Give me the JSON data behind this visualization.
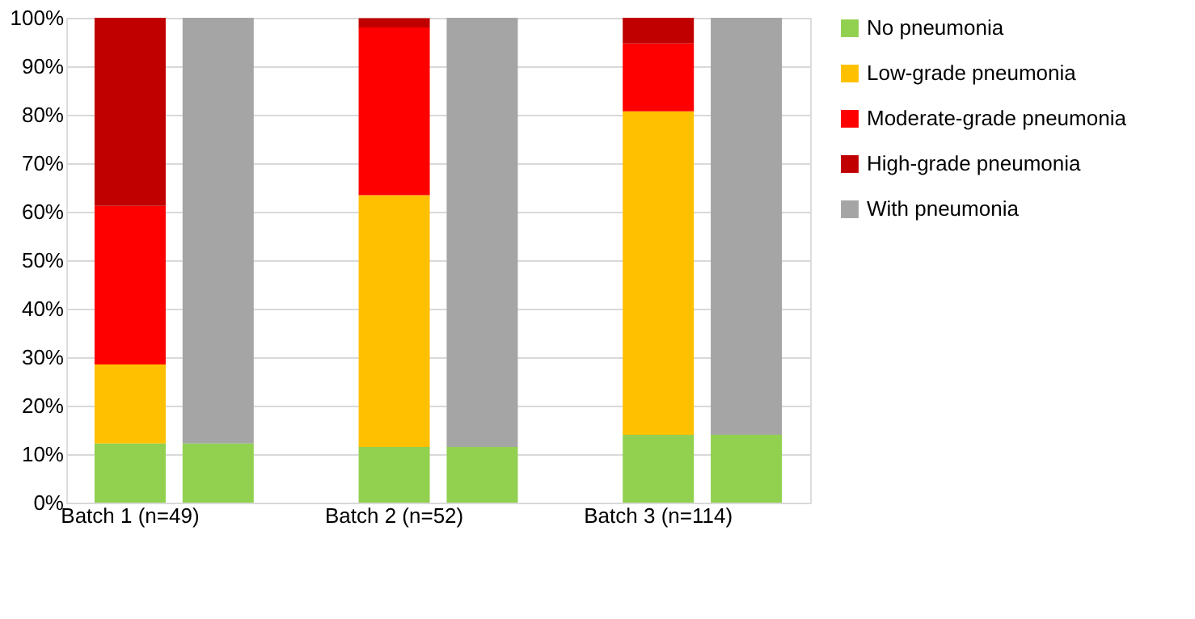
{
  "chart_data": {
    "type": "bar",
    "stacked": true,
    "categories": [
      "Batch 1 (n=49)",
      null,
      null,
      "Batch 2 (n=52)",
      null,
      null,
      "Batch 3 (n=114)",
      null
    ],
    "series": [
      {
        "name": "No pneumonia",
        "color": "#92d050",
        "values": [
          12.2,
          12.2,
          null,
          11.5,
          11.5,
          null,
          14.0,
          14.0
        ]
      },
      {
        "name": "Low-grade pneumonia",
        "color": "#ffc000",
        "values": [
          16.3,
          null,
          null,
          51.9,
          null,
          null,
          66.7,
          null
        ]
      },
      {
        "name": "Moderate-grade pneumonia",
        "color": "#ff0000",
        "values": [
          32.7,
          null,
          null,
          34.6,
          null,
          null,
          14.0,
          null
        ]
      },
      {
        "name": "High-grade pneumonia",
        "color": "#c00000",
        "values": [
          38.8,
          null,
          null,
          1.9,
          null,
          null,
          5.3,
          null
        ]
      },
      {
        "name": "With pneumonia",
        "color": "#a5a5a5",
        "values": [
          null,
          87.8,
          null,
          null,
          88.5,
          null,
          null,
          86.0
        ]
      }
    ],
    "ylim": [
      0,
      100
    ],
    "yticks": [
      {
        "value": 0,
        "label": "0%"
      },
      {
        "value": 10,
        "label": "10%"
      },
      {
        "value": 20,
        "label": "20%"
      },
      {
        "value": 30,
        "label": "30%"
      },
      {
        "value": 40,
        "label": "40%"
      },
      {
        "value": 50,
        "label": "50%"
      },
      {
        "value": 60,
        "label": "60%"
      },
      {
        "value": 70,
        "label": "70%"
      },
      {
        "value": 80,
        "label": "80%"
      },
      {
        "value": 90,
        "label": "90%"
      },
      {
        "value": 100,
        "label": "100%"
      }
    ],
    "grid": "y",
    "legend": "right"
  }
}
